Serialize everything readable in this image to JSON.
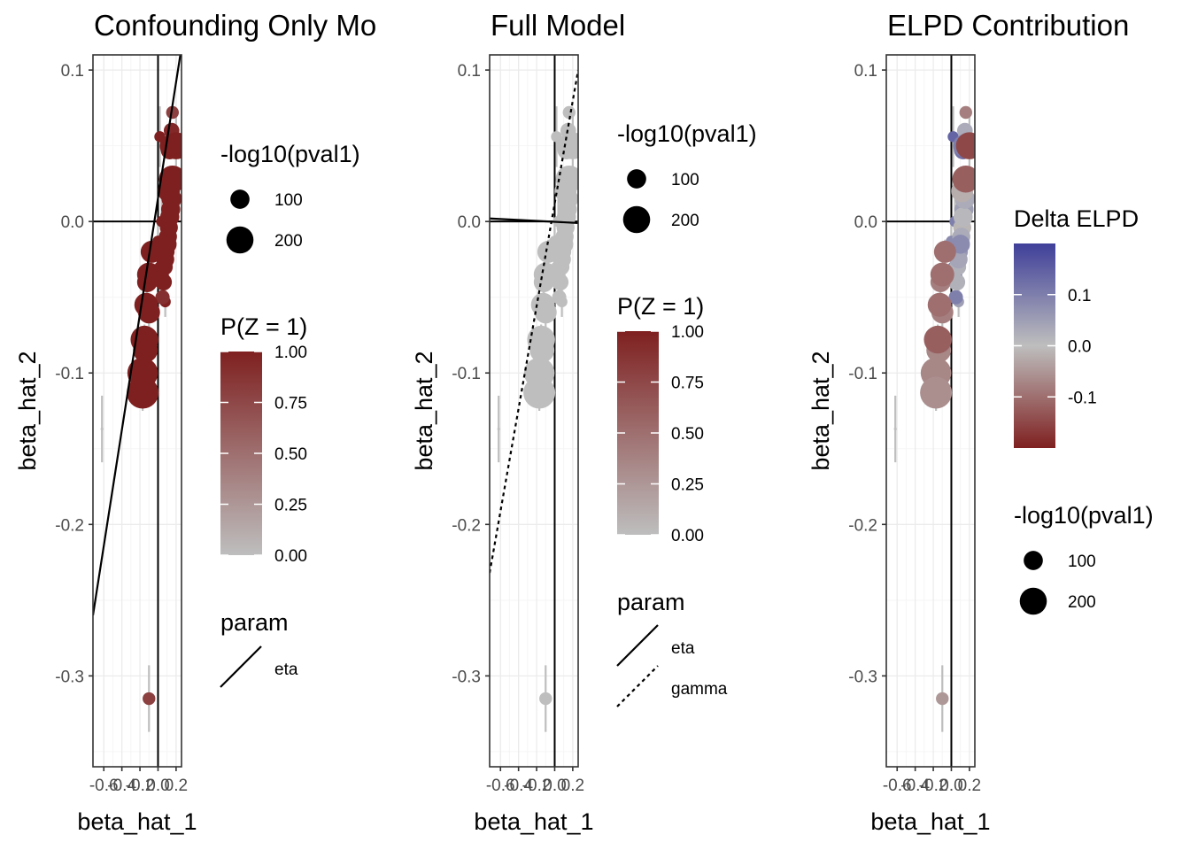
{
  "colors": {
    "high": "#7f2020",
    "low": "#bebebe",
    "blue": "#3f3f9a",
    "errbar": "#bebebe",
    "grid_major": "#ebebeb",
    "grid_minor": "#f5f5f5"
  },
  "points": {
    "bx": [
      0.16,
      0.15,
      0.14,
      0.13,
      0.16,
      0.12,
      0.15,
      0.14,
      0.13,
      0.12,
      0.11,
      0.1,
      0.09,
      0.08,
      0.07,
      0.06,
      0.05,
      -0.07,
      -0.1,
      -0.12,
      -0.13,
      -0.15,
      -0.17,
      -0.17,
      -0.14,
      -0.1,
      0.04,
      0.0,
      0.02,
      0.06,
      0.08,
      -0.1,
      0.2,
      0.02
    ],
    "by": [
      0.072,
      0.06,
      0.05,
      0.047,
      0.028,
      0.02,
      0.015,
      0.008,
      0.003,
      -0.004,
      -0.01,
      -0.015,
      -0.02,
      -0.025,
      -0.03,
      -0.04,
      -0.05,
      -0.02,
      -0.035,
      -0.04,
      -0.055,
      -0.078,
      -0.1,
      -0.113,
      -0.085,
      -0.06,
      0.0,
      -0.013,
      0.056,
      -0.036,
      -0.053,
      -0.315,
      0.05,
      -0.03
    ],
    "se": [
      0.004,
      0.004,
      0.004,
      0.004,
      0.005,
      0.004,
      0.004,
      0.004,
      0.004,
      0.004,
      0.004,
      0.004,
      0.004,
      0.004,
      0.004,
      0.004,
      0.004,
      0.008,
      0.008,
      0.008,
      0.008,
      0.01,
      0.01,
      0.012,
      0.01,
      0.01,
      0.015,
      0.015,
      0.02,
      0.01,
      0.01,
      0.022,
      0.02,
      0.015
    ],
    "ps": [
      40,
      60,
      120,
      80,
      180,
      120,
      100,
      90,
      90,
      80,
      80,
      90,
      70,
      80,
      70,
      70,
      50,
      120,
      140,
      100,
      140,
      190,
      230,
      250,
      150,
      120,
      30,
      30,
      30,
      30,
      30,
      40,
      180,
      30
    ],
    "pz": [
      0.8,
      0.95,
      1,
      1,
      1,
      1,
      1,
      1,
      1,
      1,
      1,
      1,
      1,
      1,
      1,
      1,
      0.9,
      1,
      1,
      1,
      1,
      1,
      1,
      1,
      1,
      1,
      1,
      1,
      1,
      1,
      1,
      0.8,
      1,
      1
    ],
    "delta": [
      -0.08,
      0.03,
      0.1,
      0.12,
      -0.12,
      -0.02,
      0.03,
      0.05,
      0.01,
      -0.01,
      0.03,
      0.08,
      0.06,
      0.04,
      0.02,
      0.02,
      0.1,
      -0.1,
      -0.1,
      -0.08,
      -0.1,
      -0.12,
      -0.07,
      -0.06,
      -0.07,
      -0.08,
      0.1,
      0.08,
      0.14,
      0.16,
      0.05,
      -0.05,
      -0.15,
      0.1
    ]
  },
  "outlier": {
    "x": -0.62,
    "y": -0.137,
    "se": 0.022
  },
  "chart_data": [
    {
      "type": "scatter",
      "title": "Confounding Only Mo",
      "xlabel": "beta_hat_1",
      "ylabel": "beta_hat_2",
      "xlim": [
        -0.72,
        0.26
      ],
      "ylim": [
        -0.36,
        0.11
      ],
      "x_ticks": [
        -0.6,
        -0.4,
        -0.2,
        0.0,
        0.2
      ],
      "x_tick_labels": [
        "-0.6",
        "-0.4",
        "-0.2",
        "0.0",
        "0.2"
      ],
      "y_ticks": [
        -0.3,
        -0.2,
        -0.1,
        0.0,
        0.1
      ],
      "y_tick_labels": [
        "-0.3",
        "-0.2",
        "-0.1",
        "0.0",
        "0.1"
      ],
      "color_by": "pz",
      "lines": [
        {
          "param": "eta",
          "x1": -0.72,
          "y1": -0.26,
          "x2": 0.26,
          "y2": 0.115,
          "dash": false
        }
      ],
      "legends": {
        "size": {
          "title": "-log10(pval1)",
          "entries": [
            {
              "label": "100",
              "value": 100
            },
            {
              "label": "200",
              "value": 200
            }
          ]
        },
        "color": {
          "title": "P(Z = 1)",
          "labels": [
            "1.00",
            "0.75",
            "0.50",
            "0.25",
            "0.00"
          ],
          "scale": "grey-to-darkred",
          "range": [
            0,
            1
          ]
        },
        "param": {
          "title": "param",
          "entries": [
            {
              "label": "eta",
              "dash": false
            }
          ]
        }
      }
    },
    {
      "type": "scatter",
      "title": "Full Model",
      "xlabel": "beta_hat_1",
      "ylabel": "beta_hat_2",
      "xlim": [
        -0.72,
        0.26
      ],
      "ylim": [
        -0.36,
        0.11
      ],
      "x_ticks": [
        -0.6,
        -0.4,
        -0.2,
        0.0,
        0.2
      ],
      "x_tick_labels": [
        "-0.6",
        "-0.4",
        "-0.2",
        "0.0",
        "0.2"
      ],
      "y_ticks": [
        -0.3,
        -0.2,
        -0.1,
        0.0,
        0.1
      ],
      "y_tick_labels": [
        "-0.3",
        "-0.2",
        "-0.1",
        "0.0",
        "0.1"
      ],
      "color_by": "pz_zero",
      "lines": [
        {
          "param": "eta",
          "x1": -0.72,
          "y1": 0.002,
          "x2": 0.26,
          "y2": -0.001,
          "dash": false
        },
        {
          "param": "gamma",
          "x1": -0.72,
          "y1": -0.232,
          "x2": 0.26,
          "y2": 0.1,
          "dash": true
        }
      ],
      "legends": {
        "size": {
          "title": "-log10(pval1)",
          "entries": [
            {
              "label": "100",
              "value": 100
            },
            {
              "label": "200",
              "value": 200
            }
          ]
        },
        "color": {
          "title": "P(Z = 1)",
          "labels": [
            "1.00",
            "0.75",
            "0.50",
            "0.25",
            "0.00"
          ],
          "scale": "grey-to-darkred",
          "range": [
            0,
            1
          ]
        },
        "param": {
          "title": "param",
          "entries": [
            {
              "label": "eta",
              "dash": false
            },
            {
              "label": "gamma",
              "dash": true
            }
          ]
        }
      }
    },
    {
      "type": "scatter",
      "title": "ELPD Contribution",
      "xlabel": "beta_hat_1",
      "ylabel": "beta_hat_2",
      "xlim": [
        -0.72,
        0.26
      ],
      "ylim": [
        -0.36,
        0.11
      ],
      "x_ticks": [
        -0.6,
        -0.4,
        -0.2,
        0.0,
        0.2
      ],
      "x_tick_labels": [
        "-0.6",
        "-0.4",
        "-0.2",
        "0.0",
        "0.2"
      ],
      "y_ticks": [
        -0.3,
        -0.2,
        -0.1,
        0.0,
        0.1
      ],
      "y_tick_labels": [
        "-0.3",
        "-0.2",
        "-0.1",
        "0.0",
        "0.1"
      ],
      "color_by": "delta",
      "lines": [],
      "legends": {
        "color": {
          "title": "Delta ELPD",
          "labels": [
            "0.1",
            "0.0",
            "-0.1"
          ],
          "label_values": [
            0.1,
            0.0,
            -0.1
          ],
          "scale": "darkred-grey-blue",
          "range": [
            -0.2,
            0.2
          ]
        },
        "size": {
          "title": "-log10(pval1)",
          "entries": [
            {
              "label": "100",
              "value": 100
            },
            {
              "label": "200",
              "value": 200
            }
          ]
        }
      }
    }
  ]
}
